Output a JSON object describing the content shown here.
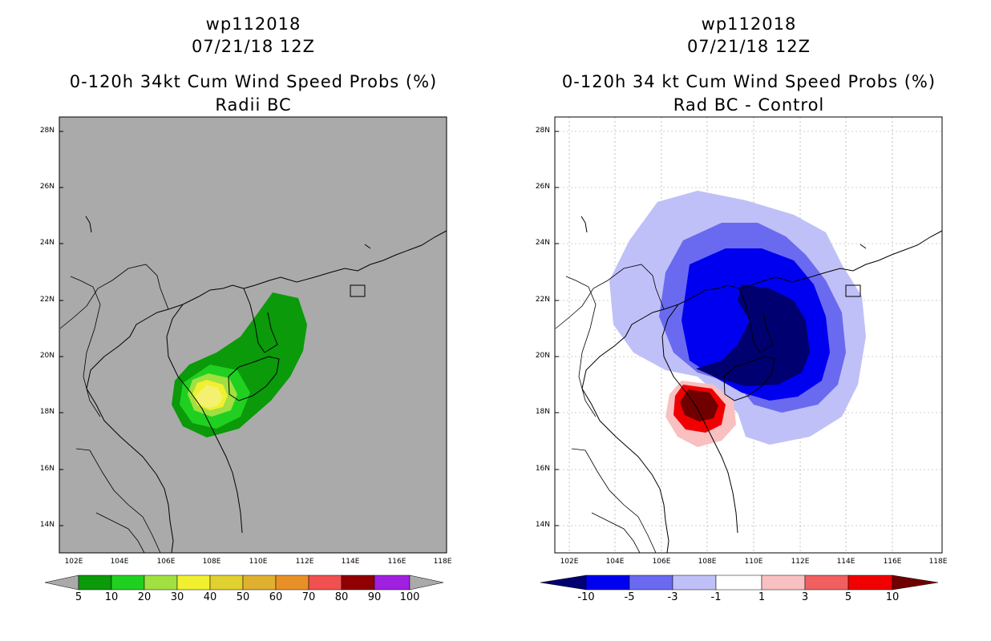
{
  "left": {
    "title_line1": "wp112018",
    "title_line2": "07/21/18 12Z",
    "title_line3": "0-120h 34kt Cum Wind Speed Probs (%)",
    "title_line4": "Radii BC",
    "colorbar": {
      "labels": [
        "5",
        "10",
        "20",
        "30",
        "40",
        "50",
        "60",
        "70",
        "80",
        "90",
        "100"
      ],
      "colors": [
        "#0a9a0a",
        "#20d020",
        "#a0e040",
        "#f0f030",
        "#e0d030",
        "#e0b030",
        "#e89028",
        "#f05050",
        "#900000",
        "#a020e0"
      ]
    }
  },
  "right": {
    "title_line1": "wp112018",
    "title_line2": "07/21/18 12Z",
    "title_line3": "0-120h 34 kt Cum Wind Speed Probs (%)",
    "title_line4": "Rad BC - Control",
    "colorbar": {
      "labels": [
        "-10",
        "-5",
        "-3",
        "-1",
        "1",
        "3",
        "5",
        "10"
      ],
      "colors": [
        "#000070",
        "#0000f0",
        "#6a6af0",
        "#c0c0f8",
        "#ffffff",
        "#f8c0c0",
        "#f06060",
        "#f00000",
        "#700000"
      ]
    }
  },
  "axes": {
    "lat_labels": [
      "28N",
      "26N",
      "24N",
      "22N",
      "20N",
      "18N",
      "16N",
      "14N"
    ],
    "lon_labels": [
      "102E",
      "104E",
      "106E",
      "108E",
      "110E",
      "112E",
      "114E",
      "116E",
      "118E"
    ]
  }
}
